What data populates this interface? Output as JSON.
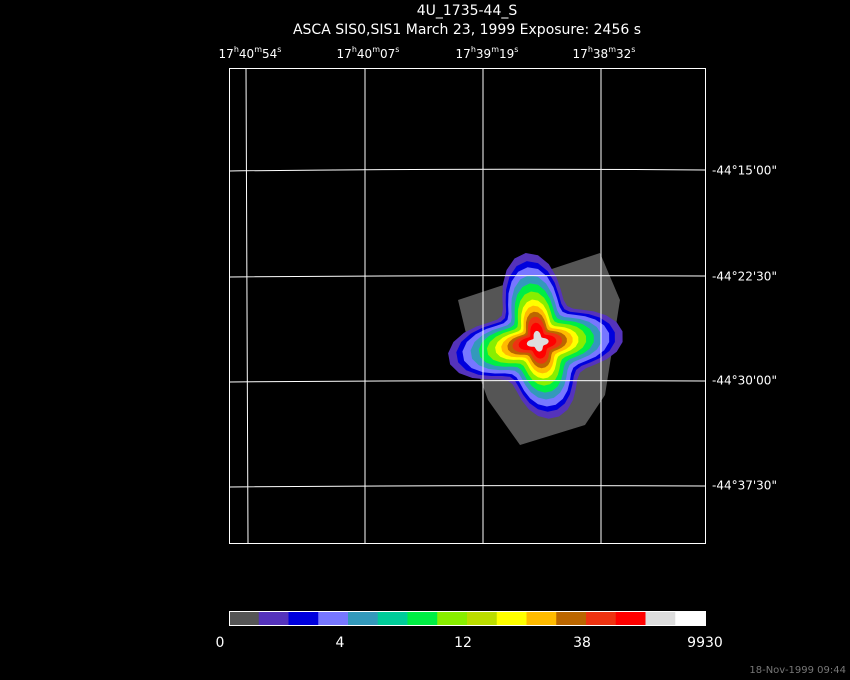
{
  "title": "4U_1735-44_S",
  "subtitle": "ASCA SIS0,SIS1 March 23, 1999 Exposure: 2456 s",
  "ra_labels": [
    [
      "17",
      "h",
      "40",
      "m",
      "54",
      "s"
    ],
    [
      "17",
      "h",
      "40",
      "m",
      "07",
      "s"
    ],
    [
      "17",
      "h",
      "39",
      "m",
      "19",
      "s"
    ],
    [
      "17",
      "h",
      "38",
      "m",
      "32",
      "s"
    ]
  ],
  "dec_labels": [
    "-44°15'00\"",
    "-44°22'30\"",
    "-44°30'00\"",
    "-44°37'30\""
  ],
  "colorbar": {
    "colors": [
      "#555555",
      "#5533bb",
      "#0000dd",
      "#7777ff",
      "#3399bb",
      "#00cc99",
      "#00ee44",
      "#88ee00",
      "#bbdd00",
      "#ffff00",
      "#ffbb00",
      "#bb6600",
      "#ee3311",
      "#ff0000",
      "#dddddd",
      "#ffffff"
    ],
    "labels": [
      "0",
      "4",
      "12",
      "38",
      "9930"
    ]
  },
  "footer": "18-Nov-1999 09:44"
}
